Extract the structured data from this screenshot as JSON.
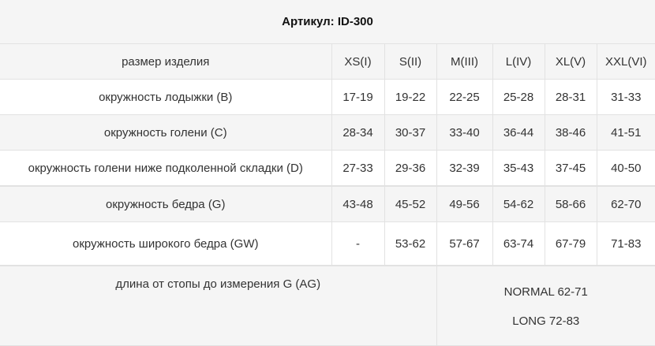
{
  "title": "Артикул: ID-300",
  "header": {
    "label": "размер изделия",
    "sizes": [
      "XS(I)",
      "S(II)",
      "M(III)",
      "L(IV)",
      "XL(V)",
      "XXL(VI)"
    ]
  },
  "rows": [
    {
      "label": "окружность лодыжки (B)",
      "values": [
        "17-19",
        "19-22",
        "22-25",
        "25-28",
        "28-31",
        "31-33"
      ]
    },
    {
      "label": "окружность  голени (C)",
      "values": [
        "28-34",
        "30-37",
        "33-40",
        "36-44",
        "38-46",
        "41-51"
      ]
    },
    {
      "label": "окружность голени ниже подколенной складки (D)",
      "values": [
        "27-33",
        "29-36",
        "32-39",
        "35-43",
        "37-45",
        "40-50"
      ]
    },
    {
      "label": "окружность бедра (G)",
      "values": [
        "43-48",
        "45-52",
        "49-56",
        "54-62",
        "58-66",
        "62-70"
      ]
    },
    {
      "label": "окружность  широкого бедра (GW)",
      "values": [
        "-",
        "53-62",
        "57-67",
        "63-74",
        "67-79",
        "71-83"
      ]
    }
  ],
  "length": {
    "label": "длина от стопы до измерения G (AG)",
    "normal": "NORMAL 62-71",
    "long": "LONG 72-83"
  }
}
